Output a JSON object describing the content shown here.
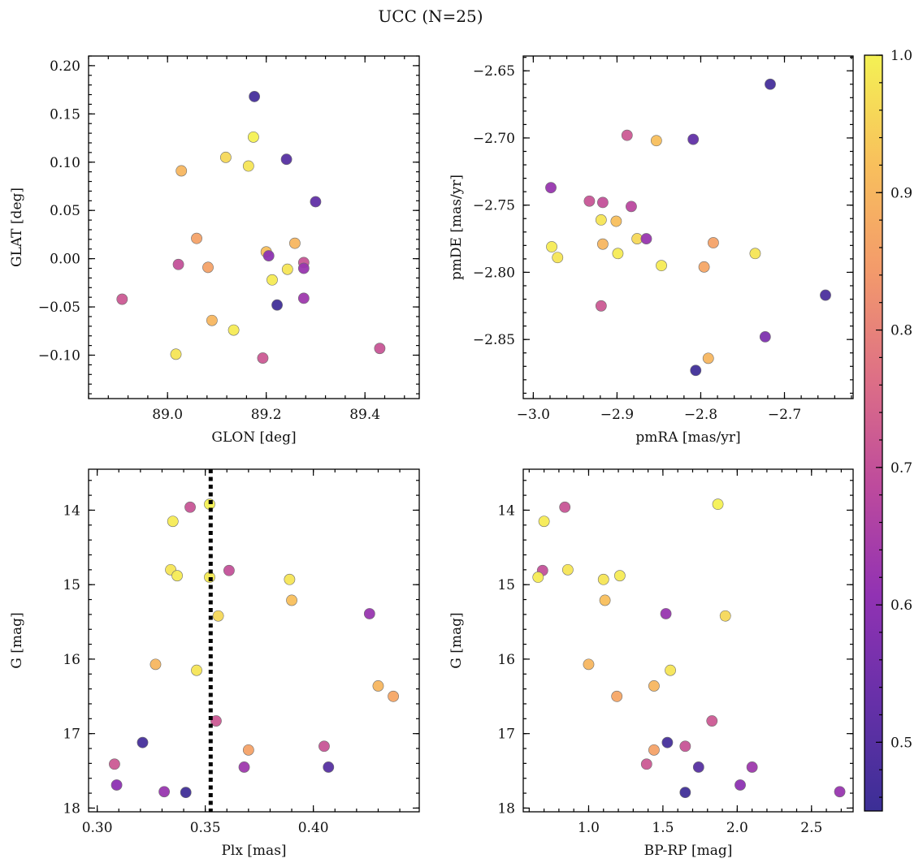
{
  "figure": {
    "title": "UCC (N=25)"
  },
  "colormap": {
    "name": "plasma",
    "stops": [
      "#3b2f96",
      "#6630a8",
      "#9132b3",
      "#bd4a9d",
      "#dd6f86",
      "#f39a6b",
      "#f8c05c",
      "#f4f154"
    ],
    "vmin": 0.45,
    "vmax": 1.0,
    "ticks": [
      {
        "value": 0.5,
        "label": "0.5"
      },
      {
        "value": 0.6,
        "label": "0.6"
      },
      {
        "value": 0.7,
        "label": "0.7"
      },
      {
        "value": 0.8,
        "label": "0.8"
      },
      {
        "value": 0.9,
        "label": "0.9"
      },
      {
        "value": 1.0,
        "label": "1.0"
      }
    ]
  },
  "chart_data": [
    {
      "type": "scatter",
      "id": "glon-glat",
      "xlabel": "GLON [deg]",
      "ylabel": "GLAT [deg]",
      "xlim": [
        88.84,
        89.51
      ],
      "ylim": [
        -0.145,
        0.21
      ],
      "y_inverted": false,
      "xticks": [
        {
          "value": 89.0,
          "label": "89.0"
        },
        {
          "value": 89.2,
          "label": "89.2"
        },
        {
          "value": 89.4,
          "label": "89.4"
        }
      ],
      "yticks": [
        {
          "value": -0.1,
          "label": "−0.10"
        },
        {
          "value": -0.05,
          "label": "−0.05"
        },
        {
          "value": 0.0,
          "label": "0.00"
        },
        {
          "value": 0.05,
          "label": "0.05"
        },
        {
          "value": 0.1,
          "label": "0.10"
        },
        {
          "value": 0.15,
          "label": "0.15"
        },
        {
          "value": 0.2,
          "label": "0.20"
        }
      ],
      "points": [
        {
          "x": 89.176,
          "y": 0.168,
          "c": 0.47
        },
        {
          "x": 89.174,
          "y": 0.126,
          "c": 1.0
        },
        {
          "x": 89.118,
          "y": 0.105,
          "c": 0.96
        },
        {
          "x": 89.164,
          "y": 0.096,
          "c": 0.98
        },
        {
          "x": 89.028,
          "y": 0.091,
          "c": 0.9
        },
        {
          "x": 89.241,
          "y": 0.103,
          "c": 0.5
        },
        {
          "x": 89.3,
          "y": 0.059,
          "c": 0.52
        },
        {
          "x": 89.059,
          "y": 0.021,
          "c": 0.86
        },
        {
          "x": 89.258,
          "y": 0.016,
          "c": 0.9
        },
        {
          "x": 89.2,
          "y": 0.007,
          "c": 0.92
        },
        {
          "x": 89.205,
          "y": 0.003,
          "c": 0.6
        },
        {
          "x": 89.276,
          "y": -0.004,
          "c": 0.71
        },
        {
          "x": 89.022,
          "y": -0.006,
          "c": 0.7
        },
        {
          "x": 89.082,
          "y": -0.009,
          "c": 0.86
        },
        {
          "x": 89.243,
          "y": -0.011,
          "c": 0.98
        },
        {
          "x": 89.276,
          "y": -0.01,
          "c": 0.62
        },
        {
          "x": 89.212,
          "y": -0.022,
          "c": 0.99
        },
        {
          "x": 88.908,
          "y": -0.042,
          "c": 0.72
        },
        {
          "x": 89.276,
          "y": -0.041,
          "c": 0.63
        },
        {
          "x": 89.222,
          "y": -0.048,
          "c": 0.46
        },
        {
          "x": 89.09,
          "y": -0.064,
          "c": 0.9
        },
        {
          "x": 89.134,
          "y": -0.074,
          "c": 0.99
        },
        {
          "x": 89.017,
          "y": -0.099,
          "c": 0.98
        },
        {
          "x": 89.193,
          "y": -0.103,
          "c": 0.72
        },
        {
          "x": 89.43,
          "y": -0.093,
          "c": 0.71
        }
      ]
    },
    {
      "type": "scatter",
      "id": "pmra-pmde",
      "xlabel": "pmRA [mas/yr]",
      "ylabel": "pmDE [mas/yr]",
      "xlim": [
        -3.012,
        -2.618
      ],
      "ylim": [
        -2.894,
        -2.639
      ],
      "y_inverted": false,
      "xticks": [
        {
          "value": -3.0,
          "label": "−3.0"
        },
        {
          "value": -2.9,
          "label": "−2.9"
        },
        {
          "value": -2.8,
          "label": "−2.8"
        },
        {
          "value": -2.7,
          "label": "−2.7"
        }
      ],
      "yticks": [
        {
          "value": -2.85,
          "label": "−2.85"
        },
        {
          "value": -2.8,
          "label": "−2.80"
        },
        {
          "value": -2.75,
          "label": "−2.75"
        },
        {
          "value": -2.7,
          "label": "−2.70"
        },
        {
          "value": -2.65,
          "label": "−2.65"
        }
      ],
      "points": [
        {
          "x": -2.717,
          "y": -2.66,
          "c": 0.47
        },
        {
          "x": -2.888,
          "y": -2.698,
          "c": 0.72
        },
        {
          "x": -2.853,
          "y": -2.702,
          "c": 0.92
        },
        {
          "x": -2.809,
          "y": -2.701,
          "c": 0.52
        },
        {
          "x": -2.979,
          "y": -2.737,
          "c": 0.62
        },
        {
          "x": -2.933,
          "y": -2.747,
          "c": 0.71
        },
        {
          "x": -2.917,
          "y": -2.748,
          "c": 0.7
        },
        {
          "x": -2.883,
          "y": -2.751,
          "c": 0.68
        },
        {
          "x": -2.919,
          "y": -2.761,
          "c": 0.98
        },
        {
          "x": -2.901,
          "y": -2.762,
          "c": 0.92
        },
        {
          "x": -2.876,
          "y": -2.775,
          "c": 0.96
        },
        {
          "x": -2.865,
          "y": -2.775,
          "c": 0.62
        },
        {
          "x": -2.917,
          "y": -2.779,
          "c": 0.9
        },
        {
          "x": -2.785,
          "y": -2.778,
          "c": 0.86
        },
        {
          "x": -2.978,
          "y": -2.781,
          "c": 0.99
        },
        {
          "x": -2.971,
          "y": -2.789,
          "c": 0.98
        },
        {
          "x": -2.899,
          "y": -2.786,
          "c": 0.99
        },
        {
          "x": -2.735,
          "y": -2.786,
          "c": 0.98
        },
        {
          "x": -2.847,
          "y": -2.795,
          "c": 0.99
        },
        {
          "x": -2.796,
          "y": -2.796,
          "c": 0.87
        },
        {
          "x": -2.919,
          "y": -2.825,
          "c": 0.72
        },
        {
          "x": -2.651,
          "y": -2.817,
          "c": 0.48
        },
        {
          "x": -2.723,
          "y": -2.848,
          "c": 0.57
        },
        {
          "x": -2.791,
          "y": -2.864,
          "c": 0.9
        },
        {
          "x": -2.806,
          "y": -2.873,
          "c": 0.46
        }
      ]
    },
    {
      "type": "scatter",
      "id": "plx-g",
      "xlabel": "Plx [mas]",
      "ylabel": "G [mag]",
      "xlim": [
        0.296,
        0.449
      ],
      "ylim": [
        18.05,
        13.45
      ],
      "y_inverted": true,
      "xticks": [
        {
          "value": 0.3,
          "label": "0.30"
        },
        {
          "value": 0.35,
          "label": "0.35"
        },
        {
          "value": 0.4,
          "label": "0.40"
        }
      ],
      "yticks": [
        {
          "value": 14,
          "label": "14"
        },
        {
          "value": 15,
          "label": "15"
        },
        {
          "value": 16,
          "label": "16"
        },
        {
          "value": 17,
          "label": "17"
        },
        {
          "value": 18,
          "label": "18"
        }
      ],
      "vline": {
        "x": 0.3525,
        "style": "dotted",
        "color": "#000000"
      },
      "points": [
        {
          "x": 0.352,
          "y": 13.92,
          "c": 1.0
        },
        {
          "x": 0.343,
          "y": 13.96,
          "c": 0.71
        },
        {
          "x": 0.335,
          "y": 14.15,
          "c": 0.99
        },
        {
          "x": 0.334,
          "y": 14.8,
          "c": 0.98
        },
        {
          "x": 0.361,
          "y": 14.81,
          "c": 0.7
        },
        {
          "x": 0.337,
          "y": 14.88,
          "c": 0.99
        },
        {
          "x": 0.352,
          "y": 14.9,
          "c": 0.99
        },
        {
          "x": 0.389,
          "y": 14.93,
          "c": 0.98
        },
        {
          "x": 0.39,
          "y": 15.21,
          "c": 0.92
        },
        {
          "x": 0.426,
          "y": 15.39,
          "c": 0.62
        },
        {
          "x": 0.356,
          "y": 15.42,
          "c": 0.96
        },
        {
          "x": 0.327,
          "y": 16.07,
          "c": 0.9
        },
        {
          "x": 0.346,
          "y": 16.15,
          "c": 0.98
        },
        {
          "x": 0.43,
          "y": 16.36,
          "c": 0.9
        },
        {
          "x": 0.437,
          "y": 16.5,
          "c": 0.87
        },
        {
          "x": 0.355,
          "y": 16.83,
          "c": 0.72
        },
        {
          "x": 0.321,
          "y": 17.12,
          "c": 0.47
        },
        {
          "x": 0.405,
          "y": 17.17,
          "c": 0.71
        },
        {
          "x": 0.37,
          "y": 17.22,
          "c": 0.86
        },
        {
          "x": 0.308,
          "y": 17.41,
          "c": 0.72
        },
        {
          "x": 0.368,
          "y": 17.45,
          "c": 0.63
        },
        {
          "x": 0.407,
          "y": 17.45,
          "c": 0.5
        },
        {
          "x": 0.309,
          "y": 17.69,
          "c": 0.6
        },
        {
          "x": 0.331,
          "y": 17.78,
          "c": 0.62
        },
        {
          "x": 0.341,
          "y": 17.79,
          "c": 0.46
        }
      ]
    },
    {
      "type": "scatter",
      "id": "bprp-g",
      "xlabel": "BP-RP [mag]",
      "ylabel": "G [mag]",
      "xlim": [
        0.56,
        2.78
      ],
      "ylim": [
        18.05,
        13.45
      ],
      "y_inverted": true,
      "xticks": [
        {
          "value": 1.0,
          "label": "1.0"
        },
        {
          "value": 1.5,
          "label": "1.5"
        },
        {
          "value": 2.0,
          "label": "2.0"
        },
        {
          "value": 2.5,
          "label": "2.5"
        }
      ],
      "yticks": [
        {
          "value": 14,
          "label": "14"
        },
        {
          "value": 15,
          "label": "15"
        },
        {
          "value": 16,
          "label": "16"
        },
        {
          "value": 17,
          "label": "17"
        },
        {
          "value": 18,
          "label": "18"
        }
      ],
      "points": [
        {
          "x": 1.87,
          "y": 13.92,
          "c": 1.0
        },
        {
          "x": 0.84,
          "y": 13.96,
          "c": 0.71
        },
        {
          "x": 0.7,
          "y": 14.15,
          "c": 0.99
        },
        {
          "x": 0.69,
          "y": 14.81,
          "c": 0.7
        },
        {
          "x": 0.86,
          "y": 14.8,
          "c": 0.98
        },
        {
          "x": 0.66,
          "y": 14.9,
          "c": 0.99
        },
        {
          "x": 1.1,
          "y": 14.93,
          "c": 0.98
        },
        {
          "x": 1.21,
          "y": 14.88,
          "c": 0.99
        },
        {
          "x": 1.11,
          "y": 15.21,
          "c": 0.92
        },
        {
          "x": 1.52,
          "y": 15.39,
          "c": 0.62
        },
        {
          "x": 1.92,
          "y": 15.42,
          "c": 0.96
        },
        {
          "x": 1.0,
          "y": 16.07,
          "c": 0.9
        },
        {
          "x": 1.55,
          "y": 16.15,
          "c": 0.98
        },
        {
          "x": 1.44,
          "y": 16.36,
          "c": 0.9
        },
        {
          "x": 1.19,
          "y": 16.5,
          "c": 0.87
        },
        {
          "x": 1.83,
          "y": 16.83,
          "c": 0.72
        },
        {
          "x": 1.53,
          "y": 17.12,
          "c": 0.47
        },
        {
          "x": 1.65,
          "y": 17.17,
          "c": 0.71
        },
        {
          "x": 1.44,
          "y": 17.22,
          "c": 0.86
        },
        {
          "x": 1.39,
          "y": 17.41,
          "c": 0.72
        },
        {
          "x": 2.1,
          "y": 17.45,
          "c": 0.63
        },
        {
          "x": 1.74,
          "y": 17.45,
          "c": 0.5
        },
        {
          "x": 2.02,
          "y": 17.69,
          "c": 0.6
        },
        {
          "x": 2.69,
          "y": 17.78,
          "c": 0.62
        },
        {
          "x": 1.65,
          "y": 17.79,
          "c": 0.46
        }
      ]
    }
  ]
}
